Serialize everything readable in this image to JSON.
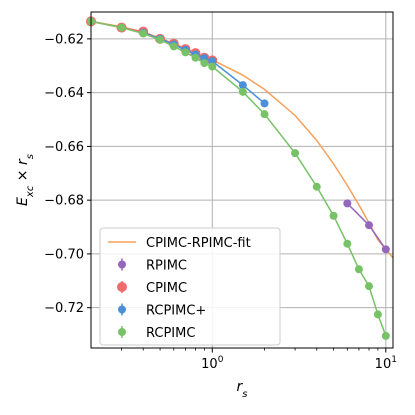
{
  "chart_data": {
    "type": "scatter",
    "xlabel": "r_s",
    "ylabel": "E_xc × r_s",
    "x_scale": "log",
    "xlim": [
      0.2,
      11.0
    ],
    "ylim": [
      -0.735,
      -0.61
    ],
    "grid": true,
    "legend_position": "lower-left",
    "x_tick_labels": [
      {
        "value": 1,
        "mantissa": "10",
        "exponent": "0"
      },
      {
        "value": 10,
        "mantissa": "10",
        "exponent": "1"
      }
    ],
    "y_ticks": [
      -0.62,
      -0.64,
      -0.66,
      -0.68,
      -0.7,
      -0.72
    ],
    "y_tick_labels": [
      "−0.62",
      "−0.64",
      "−0.66",
      "−0.68",
      "−0.70",
      "−0.72"
    ],
    "series": [
      {
        "name": "CPIMC-RPIMC-fit",
        "kind": "line",
        "color": "#f5a15a",
        "x": [
          0.2,
          0.3,
          0.4,
          0.5,
          0.6,
          0.7,
          0.8,
          0.9,
          1.0,
          1.5,
          2.0,
          3.0,
          4.0,
          5.0,
          6.0,
          7.0,
          8.0,
          9.0,
          10.0,
          11.0
        ],
        "y": [
          -0.6135,
          -0.6155,
          -0.6175,
          -0.6197,
          -0.6218,
          -0.6236,
          -0.6253,
          -0.6267,
          -0.6278,
          -0.6335,
          -0.6388,
          -0.6485,
          -0.6578,
          -0.6665,
          -0.6745,
          -0.6818,
          -0.6885,
          -0.6947,
          -0.6983,
          -0.7015
        ]
      },
      {
        "name": "RPIMC",
        "kind": "marker",
        "color": "#9467bd",
        "x": [
          6.0,
          8.0,
          10.0
        ],
        "y": [
          -0.6812,
          -0.6893,
          -0.6983
        ]
      },
      {
        "name": "CPIMC",
        "kind": "marker",
        "color": "#ef6b6b",
        "x": [
          0.2,
          0.3,
          0.4,
          0.5,
          0.6,
          0.7,
          0.8,
          0.9,
          1.0
        ],
        "y": [
          -0.6135,
          -0.6158,
          -0.6173,
          -0.62,
          -0.6218,
          -0.6238,
          -0.6253,
          -0.627,
          -0.628
        ]
      },
      {
        "name": "RCPIMC+",
        "kind": "marker",
        "color": "#4a90d9",
        "x": [
          0.4,
          0.5,
          0.6,
          0.7,
          0.8,
          0.9,
          1.0,
          1.5,
          2.0
        ],
        "y": [
          -0.6177,
          -0.62,
          -0.6221,
          -0.6241,
          -0.6258,
          -0.6272,
          -0.6283,
          -0.6372,
          -0.644
        ]
      },
      {
        "name": "RCPIMC",
        "kind": "marker",
        "color": "#77c267",
        "x": [
          0.2,
          0.3,
          0.4,
          0.5,
          0.6,
          0.7,
          0.8,
          0.9,
          1.0,
          1.5,
          2.0,
          3.0,
          4.0,
          5.0,
          6.0,
          7.0,
          8.0,
          9.0,
          10.0
        ],
        "y": [
          -0.6135,
          -0.6158,
          -0.618,
          -0.6203,
          -0.6228,
          -0.625,
          -0.627,
          -0.629,
          -0.6303,
          -0.6397,
          -0.648,
          -0.6625,
          -0.675,
          -0.6858,
          -0.6962,
          -0.7057,
          -0.712,
          -0.7225,
          -0.7305
        ]
      }
    ]
  }
}
